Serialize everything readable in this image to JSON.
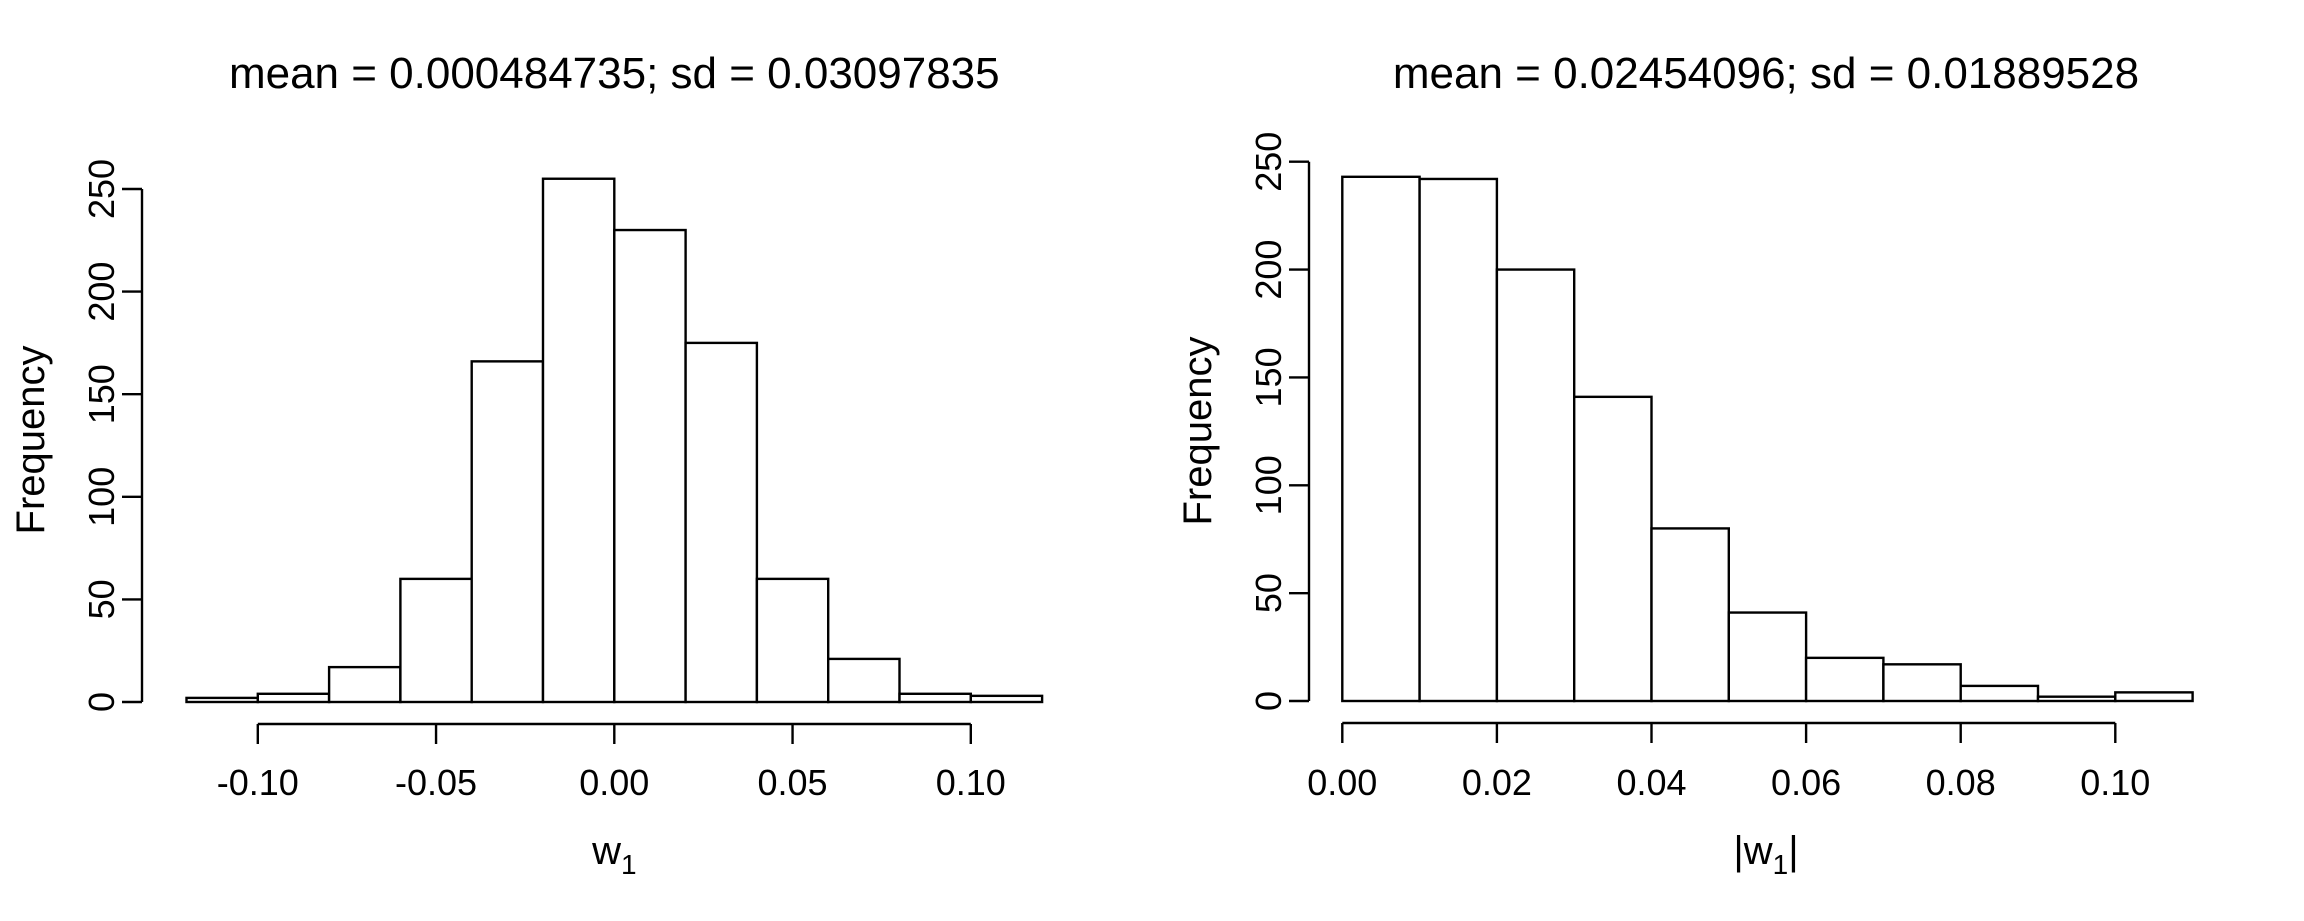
{
  "figure": {
    "background": "#ffffff",
    "line_color": "#000000",
    "bar_fill": "#ffffff",
    "bar_border": "#000000"
  },
  "chart_data": [
    {
      "type": "bar",
      "subtype": "histogram",
      "title": "mean = 0.000484735; sd = 0.03097835",
      "xlabel": {
        "prefix": "w",
        "sub": "1",
        "suffix": ""
      },
      "ylabel": "Frequency",
      "bin_start": -0.12,
      "bin_width": 0.02,
      "counts": [
        2,
        4,
        17,
        60,
        166,
        255,
        230,
        175,
        60,
        21,
        4,
        3
      ],
      "x_ticks": [
        -0.1,
        -0.05,
        0.0,
        0.05,
        0.1
      ],
      "x_tick_labels": [
        "-0.10",
        "-0.05",
        "0.00",
        "0.05",
        "0.10"
      ],
      "y_ticks": [
        0,
        50,
        100,
        150,
        200,
        250
      ],
      "y_tick_labels": [
        "0",
        "50",
        "100",
        "150",
        "200",
        "250"
      ],
      "xlim": [
        -0.12,
        0.12
      ],
      "ylim": [
        0,
        255
      ],
      "grid": "off",
      "legend": "none"
    },
    {
      "type": "bar",
      "subtype": "histogram",
      "title": "mean = 0.02454096; sd = 0.01889528",
      "xlabel": {
        "prefix": "|w",
        "sub": "1",
        "suffix": "|"
      },
      "ylabel": "Frequency",
      "bin_start": 0.0,
      "bin_width": 0.01,
      "counts": [
        243,
        242,
        200,
        141,
        80,
        41,
        20,
        17,
        7,
        2,
        4
      ],
      "x_ticks": [
        0.0,
        0.02,
        0.04,
        0.06,
        0.08,
        0.1
      ],
      "x_tick_labels": [
        "0.00",
        "0.02",
        "0.04",
        "0.06",
        "0.08",
        "0.10"
      ],
      "y_ticks": [
        0,
        50,
        100,
        150,
        200,
        250
      ],
      "y_tick_labels": [
        "0",
        "50",
        "100",
        "150",
        "200",
        "250"
      ],
      "xlim": [
        0.0,
        0.11
      ],
      "ylim": [
        0,
        250
      ],
      "grid": "off",
      "legend": "none"
    }
  ]
}
